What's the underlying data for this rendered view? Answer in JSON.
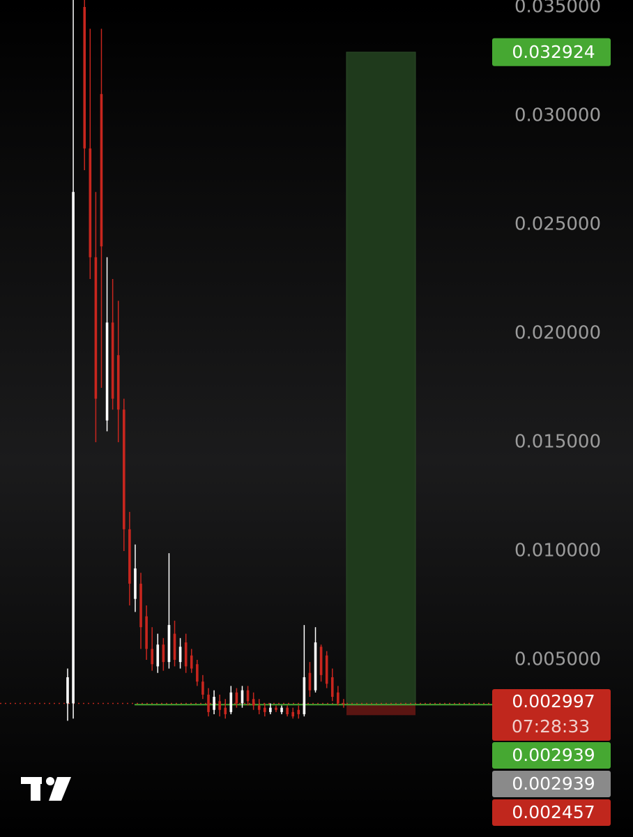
{
  "chart_data": {
    "type": "candlestick",
    "categories": [
      null,
      null,
      null,
      null,
      null,
      null,
      null,
      null,
      null,
      null,
      null,
      null,
      null,
      null,
      null,
      null,
      null,
      null,
      null,
      null,
      null,
      null,
      null,
      null,
      null,
      null,
      null,
      null,
      null,
      null,
      null,
      null,
      null,
      null,
      null,
      null,
      null,
      null,
      null,
      null,
      null,
      null,
      null,
      null,
      null,
      null,
      null,
      null,
      null,
      null
    ],
    "open": [
      0.003,
      0.003,
      null,
      0.035,
      0.0285,
      0.0235,
      0.031,
      0.016,
      0.0205,
      0.019,
      0.0165,
      0.011,
      0.0078,
      0.0085,
      0.007,
      0.0055,
      0.0047,
      0.0057,
      0.0049,
      0.0062,
      0.0049,
      0.0058,
      0.0052,
      0.0048,
      0.004,
      0.0034,
      0.0027,
      0.0031,
      0.0028,
      0.0026,
      0.0035,
      0.003,
      0.0036,
      0.0032,
      0.0029,
      0.0028,
      0.0026,
      0.0028,
      0.0026,
      0.0028,
      0.0026,
      0.0027,
      0.0025,
      0.0044,
      0.0036,
      0.0056,
      0.0052,
      0.0042,
      0.0035,
      0.003
    ],
    "high": [
      0.0046,
      0.036,
      null,
      0.0358,
      0.034,
      0.0265,
      0.034,
      0.0235,
      0.0225,
      0.0215,
      0.017,
      0.0118,
      0.0103,
      0.009,
      0.0075,
      0.0065,
      0.0062,
      0.006,
      0.0099,
      0.0068,
      0.006,
      0.0062,
      0.0055,
      0.005,
      0.0043,
      0.0037,
      0.0036,
      0.0034,
      0.0032,
      0.0038,
      0.0037,
      0.0038,
      0.0038,
      0.0035,
      0.0032,
      0.003,
      0.003,
      0.0029,
      0.0029,
      0.0029,
      0.0028,
      0.0029,
      0.0066,
      0.0049,
      0.0065,
      0.0057,
      0.0054,
      0.0046,
      0.0038,
      0.0032
    ],
    "low": [
      0.0022,
      0.0023,
      null,
      0.0275,
      0.0225,
      0.015,
      0.0175,
      0.0155,
      0.0165,
      0.015,
      0.01,
      0.0075,
      0.0072,
      0.0055,
      0.005,
      0.0045,
      0.0044,
      0.0045,
      0.0046,
      0.0047,
      0.0046,
      0.0044,
      0.0044,
      0.0038,
      0.0032,
      0.0024,
      0.0025,
      0.0024,
      0.0023,
      0.0025,
      0.0028,
      0.0028,
      0.0029,
      0.0027,
      0.0025,
      0.0024,
      0.0025,
      0.0026,
      0.0025,
      0.0024,
      0.0023,
      0.0023,
      0.0024,
      0.0033,
      0.0035,
      0.004,
      0.0037,
      0.0031,
      0.0029,
      0.0028
    ],
    "close": [
      0.0042,
      0.0265,
      null,
      0.0285,
      0.0235,
      0.017,
      0.024,
      0.0205,
      0.017,
      0.0165,
      0.011,
      0.0085,
      0.0092,
      0.0065,
      0.0055,
      0.0048,
      0.0057,
      0.0049,
      0.0066,
      0.005,
      0.0056,
      0.0047,
      0.0046,
      0.004,
      0.0034,
      0.0026,
      0.0033,
      0.0027,
      0.0025,
      0.0035,
      0.003,
      0.0036,
      0.0031,
      0.0029,
      0.0027,
      0.0026,
      0.0028,
      0.0027,
      0.0028,
      0.0025,
      0.0024,
      0.0025,
      0.0042,
      0.0036,
      0.0058,
      0.0043,
      0.0039,
      0.0033,
      0.003,
      0.002997
    ],
    "up_color": "#ffffff",
    "down_color": "#c8261e",
    "ylim": [
      -0.003141,
      0.035321
    ],
    "yticks": [
      {
        "value": 0.035,
        "label": "0.035000"
      },
      {
        "value": 0.03,
        "label": "0.030000"
      },
      {
        "value": 0.025,
        "label": "0.025000"
      },
      {
        "value": 0.02,
        "label": "0.020000"
      },
      {
        "value": 0.015,
        "label": "0.015000"
      },
      {
        "value": 0.01,
        "label": "0.010000"
      },
      {
        "value": 0.005,
        "label": "0.005000"
      }
    ],
    "position": {
      "target": 0.032924,
      "entry": 0.002939,
      "stop": 0.002457,
      "profit_color": "#1f3a1c",
      "loss_color": "#5a1512",
      "target_color": "#46a832",
      "entry_color": "#46a832",
      "stop_color": "#c0271d"
    },
    "alert": 0.002939,
    "alert_color": "#8a8a8a",
    "last_color": "#c0271d",
    "countdown": "07:28:33"
  }
}
